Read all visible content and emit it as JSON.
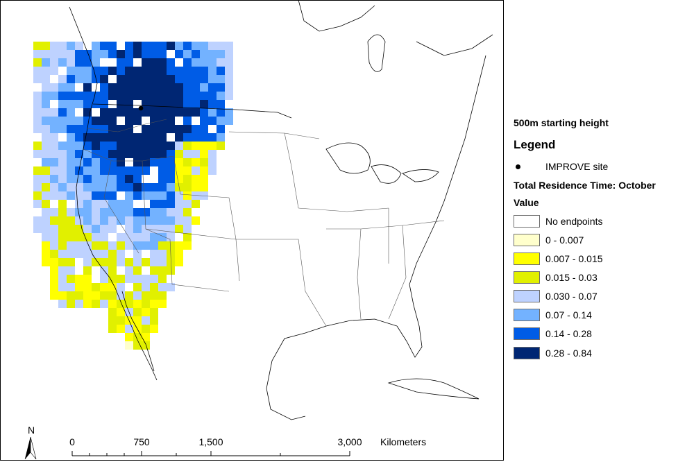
{
  "map": {
    "site_marker_label": "IMPROVE site",
    "scale_bar": {
      "ticks": [
        "0",
        "750",
        "1,500",
        "3,000"
      ],
      "unit": "Kilometers"
    },
    "north_arrow_label": "N"
  },
  "legend": {
    "subtitle": "500m starting height",
    "title": "Legend",
    "site_label": "IMPROVE site",
    "layer_title": "Total Residence Time: October",
    "value_title": "Value",
    "classes": [
      {
        "label": "No endpoints",
        "color": "#ffffff"
      },
      {
        "label": "0 - 0.007",
        "color": "#ffffcc"
      },
      {
        "label": "0.007 - 0.015",
        "color": "#ffff00"
      },
      {
        "label": "0.015 - 0.03",
        "color": "#e1f000"
      },
      {
        "label": "0.030 - 0.07",
        "color": "#bed2ff"
      },
      {
        "label": "0.07 - 0.14",
        "color": "#73b2ff"
      },
      {
        "label": "0.14 - 0.28",
        "color": "#005ce6"
      },
      {
        "label": "0.28 - 0.84",
        "color": "#002673"
      }
    ]
  }
}
